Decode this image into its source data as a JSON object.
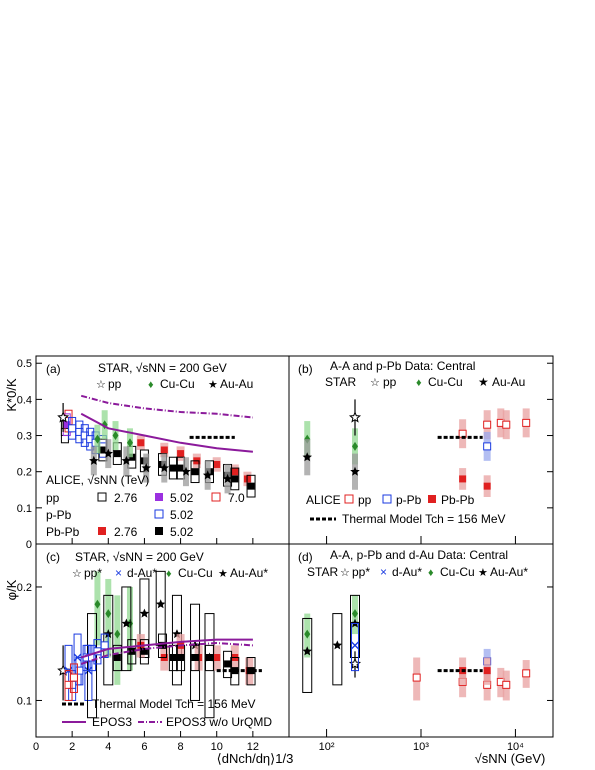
{
  "chart_data": [
    {
      "type": "scatter",
      "panel_label": "(a)",
      "ylabel": "K*0/K",
      "ylim": [
        0,
        0.52
      ],
      "xlim": [
        0,
        14
      ],
      "legend_star": {
        "title": "STAR, √sNN = 200 GeV",
        "pp": "pp",
        "cucu": "Cu-Cu",
        "auau": "Au-Au"
      },
      "legend_alice": {
        "title": "ALICE, √sNN (TeV)",
        "pp": "pp",
        "ppb": "p-Pb",
        "pbpb": "Pb-Pb",
        "e276": "2.76",
        "e502": "5.02",
        "e70": "7.0"
      },
      "series": [
        {
          "name": "ALICE pp 2.76",
          "x": [
            1.6
          ],
          "y": [
            0.31
          ],
          "err": [
            0.03
          ]
        },
        {
          "name": "ALICE pp 7.0",
          "x": [
            1.8
          ],
          "y": [
            0.34
          ],
          "err": [
            0.03
          ]
        },
        {
          "name": "ALICE pp 5.02",
          "x": [
            1.7
          ],
          "y": [
            0.33
          ],
          "err": [
            0.03
          ]
        },
        {
          "name": "ALICE p-Pb 5.02",
          "x": [
            2.0,
            2.4,
            2.7,
            3.0,
            3.3,
            3.7
          ],
          "y": [
            0.32,
            0.31,
            0.3,
            0.29,
            0.28,
            0.27
          ],
          "err": [
            0.03,
            0.03,
            0.03,
            0.03,
            0.03,
            0.03
          ]
        },
        {
          "name": "ALICE Pb-Pb 2.76",
          "x": [
            5.8,
            7.1,
            8.0,
            8.9,
            10.0,
            11.0,
            11.7
          ],
          "y": [
            0.28,
            0.26,
            0.25,
            0.23,
            0.22,
            0.2,
            0.18
          ],
          "err": [
            0.02,
            0.02,
            0.02,
            0.02,
            0.02,
            0.02,
            0.02
          ]
        },
        {
          "name": "ALICE Pb-Pb 5.02",
          "x": [
            3.7,
            4.5,
            5.3,
            6.0,
            7.0,
            7.6,
            8.0,
            8.8,
            9.6,
            10.6,
            11.0,
            11.9
          ],
          "y": [
            0.26,
            0.25,
            0.24,
            0.23,
            0.22,
            0.21,
            0.21,
            0.2,
            0.2,
            0.19,
            0.18,
            0.16
          ],
          "err": [
            0.03,
            0.03,
            0.03,
            0.03,
            0.03,
            0.03,
            0.03,
            0.03,
            0.03,
            0.03,
            0.03,
            0.03
          ]
        },
        {
          "name": "STAR pp",
          "x": [
            1.5
          ],
          "y": [
            0.35
          ],
          "err": [
            0.04
          ]
        },
        {
          "name": "STAR Cu-Cu",
          "x": [
            3.4,
            3.8,
            4.4,
            5.2
          ],
          "y": [
            0.29,
            0.33,
            0.3,
            0.28
          ],
          "err": [
            0.04,
            0.04,
            0.04,
            0.04
          ]
        },
        {
          "name": "STAR Au-Au",
          "x": [
            3.2,
            4.0,
            5.0,
            6.1,
            7.1,
            8.3,
            9.5,
            10.6
          ],
          "y": [
            0.23,
            0.25,
            0.23,
            0.21,
            0.21,
            0.2,
            0.19,
            0.18
          ],
          "err": [
            0.04,
            0.04,
            0.04,
            0.04,
            0.04,
            0.04,
            0.04,
            0.04
          ]
        }
      ],
      "thermal_model": {
        "x": [
          8.5,
          11.0
        ],
        "y": 0.295
      },
      "curve_epos3": {
        "x": [
          2.5,
          4,
          6,
          8,
          10,
          12
        ],
        "y": [
          0.36,
          0.32,
          0.3,
          0.28,
          0.265,
          0.255
        ]
      },
      "curve_epos3_wo": {
        "x": [
          2.5,
          4,
          6,
          8,
          10,
          12
        ],
        "y": [
          0.41,
          0.39,
          0.375,
          0.365,
          0.36,
          0.35
        ]
      }
    },
    {
      "type": "scatter",
      "panel_label": "(b)",
      "title": "A-A and p-Pb Data: Central",
      "ylim": [
        0,
        0.52
      ],
      "xscale": "log",
      "legend_star": {
        "title": "STAR",
        "pp": "pp",
        "cucu": "Cu-Cu",
        "auau": "Au-Au"
      },
      "legend_alice": {
        "title": "ALICE",
        "pp": "pp",
        "ppb": "p-Pb",
        "pbpb": "Pb-Pb"
      },
      "thermal_label": "Thermal Model Tch = 156 MeV",
      "series": [
        {
          "name": "STAR Cu-Cu",
          "x": [
            62.4,
            200
          ],
          "y": [
            0.29,
            0.27
          ],
          "err": [
            0.05,
            0.05
          ]
        },
        {
          "name": "STAR Au-Au",
          "x": [
            62.4,
            200
          ],
          "y": [
            0.24,
            0.2
          ],
          "err": [
            0.05,
            0.05
          ]
        },
        {
          "name": "STAR pp",
          "x": [
            200
          ],
          "y": [
            0.35
          ],
          "err": [
            0.05
          ]
        },
        {
          "name": "ALICE pp",
          "x": [
            2760,
            5020,
            7000,
            8000,
            13000
          ],
          "y": [
            0.305,
            0.33,
            0.335,
            0.33,
            0.335
          ],
          "err": [
            0.04,
            0.04,
            0.04,
            0.04,
            0.04
          ]
        },
        {
          "name": "ALICE p-Pb",
          "x": [
            5020
          ],
          "y": [
            0.27
          ],
          "err": [
            0.04
          ]
        },
        {
          "name": "ALICE Pb-Pb",
          "x": [
            2760,
            5020
          ],
          "y": [
            0.18,
            0.16
          ],
          "err": [
            0.03,
            0.03
          ]
        }
      ],
      "thermal_model": {
        "x": [
          1500,
          4500
        ],
        "y": 0.295
      }
    },
    {
      "type": "scatter",
      "panel_label": "(c)",
      "ylabel": "φ/K",
      "xlabel": "⟨dNch/dη⟩1/3",
      "yscale": "log",
      "ylim": [
        0.08,
        0.26
      ],
      "xlim": [
        0,
        14
      ],
      "xticks": [
        "0",
        "2",
        "4",
        "6",
        "8",
        "10",
        "12"
      ],
      "legend_star": {
        "title": "STAR, √sNN = 200 GeV",
        "pp": "pp*",
        "dau": "d-Au*",
        "cucu": "Cu-Cu",
        "auau": "Au-Au*"
      },
      "legend_models": {
        "thermal": "Thermal Model  Tch = 156 MeV",
        "epos3": "EPOS3",
        "epos3_wo": "EPOS3 w/o UrQMD"
      },
      "series": [
        {
          "name": "STAR pp*",
          "x": [
            1.5
          ],
          "y": [
            0.12
          ],
          "err": [
            0.02
          ]
        },
        {
          "name": "STAR d-Au*",
          "x": [
            1.8,
            2.3,
            2.9
          ],
          "y": [
            0.12,
            0.13,
            0.12
          ],
          "err": [
            0.02,
            0.02,
            0.02
          ]
        },
        {
          "name": "STAR Cu-Cu",
          "x": [
            3.4,
            4.0,
            4.5,
            5.2
          ],
          "y": [
            0.18,
            0.17,
            0.15,
            0.16
          ],
          "err": [
            0.04,
            0.04,
            0.04,
            0.04
          ]
        },
        {
          "name": "STAR Au-Au*",
          "x": [
            3.1,
            4.0,
            5.0,
            6.0,
            6.9,
            7.8,
            8.8,
            9.6
          ],
          "y": [
            0.13,
            0.15,
            0.16,
            0.17,
            0.18,
            0.15,
            0.14,
            0.13
          ],
          "err": [
            0.04,
            0.04,
            0.04,
            0.04,
            0.04,
            0.04,
            0.04,
            0.04
          ]
        },
        {
          "name": "ALICE p-Pb 5.02",
          "x": [
            2.0,
            2.4,
            2.8,
            3.1,
            3.4,
            3.8
          ],
          "y": [
            0.11,
            0.12,
            0.13,
            0.13,
            0.135,
            0.14
          ],
          "err": [
            0.01,
            0.01,
            0.01,
            0.01,
            0.01,
            0.01
          ]
        },
        {
          "name": "ALICE Pb-Pb 2.76",
          "x": [
            5.8,
            7.1,
            8.0,
            9.0,
            10.0,
            11.0,
            11.8
          ],
          "y": [
            0.14,
            0.13,
            0.14,
            0.13,
            0.13,
            0.13,
            0.12
          ],
          "err": [
            0.01,
            0.01,
            0.01,
            0.01,
            0.01,
            0.01,
            0.01
          ]
        },
        {
          "name": "ALICE Pb-Pb 5.02",
          "x": [
            4.5,
            5.3,
            6.0,
            7.0,
            7.6,
            8.0,
            8.8,
            9.6,
            10.6,
            11.0,
            11.9
          ],
          "y": [
            0.13,
            0.135,
            0.135,
            0.14,
            0.13,
            0.13,
            0.13,
            0.13,
            0.125,
            0.12,
            0.12
          ],
          "err": [
            0.01,
            0.01,
            0.01,
            0.01,
            0.01,
            0.01,
            0.01,
            0.01,
            0.01,
            0.01,
            0.01
          ]
        },
        {
          "name": "ALICE pp 7.0",
          "x": [
            1.8,
            2.1
          ],
          "y": [
            0.11,
            0.115
          ],
          "err": [
            0.01,
            0.01
          ]
        }
      ],
      "thermal_model": {
        "x": [
          10.0,
          12.5
        ],
        "y": 0.12
      },
      "curve_epos3": {
        "x": [
          2.5,
          4,
          6,
          8,
          10,
          12
        ],
        "y": [
          0.13,
          0.137,
          0.14,
          0.143,
          0.145,
          0.145
        ]
      },
      "curve_epos3_wo": {
        "x": [
          2.5,
          4,
          6,
          8,
          10,
          12
        ],
        "y": [
          0.125,
          0.132,
          0.137,
          0.14,
          0.142,
          0.14
        ]
      }
    },
    {
      "type": "scatter",
      "panel_label": "(d)",
      "title": "A-A, p-Pb and d-Au Data: Central",
      "xlabel": "√sNN (GeV)",
      "xscale": "log",
      "yscale": "log",
      "ylim": [
        0.08,
        0.26
      ],
      "xticks": [
        "10²",
        "10³",
        "10⁴"
      ],
      "legend_star": {
        "title": "STAR",
        "pp": "pp*",
        "dau": "d-Au*",
        "cucu": "Cu-Cu",
        "auau": "Au-Au*"
      },
      "series": [
        {
          "name": "STAR Cu-Cu",
          "x": [
            62.4,
            200
          ],
          "y": [
            0.15,
            0.17
          ],
          "err": [
            0.02,
            0.02
          ]
        },
        {
          "name": "STAR Au-Au*",
          "x": [
            62.4,
            130,
            200
          ],
          "y": [
            0.135,
            0.14,
            0.16
          ],
          "err": [
            0.03,
            0.03,
            0.03
          ]
        },
        {
          "name": "STAR pp*",
          "x": [
            200
          ],
          "y": [
            0.125
          ],
          "err": [
            0.01
          ]
        },
        {
          "name": "STAR d-Au*",
          "x": [
            200
          ],
          "y": [
            0.14
          ],
          "err": [
            0.02
          ]
        },
        {
          "name": "ALICE pp",
          "x": [
            900,
            2760,
            5020,
            7000,
            8000,
            13000
          ],
          "y": [
            0.115,
            0.112,
            0.11,
            0.112,
            0.11,
            0.118
          ],
          "err": [
            0.015,
            0.01,
            0.01,
            0.01,
            0.01,
            0.01
          ]
        },
        {
          "name": "ALICE p-Pb",
          "x": [
            5020
          ],
          "y": [
            0.127
          ],
          "err": [
            0.01
          ]
        },
        {
          "name": "ALICE Pb-Pb",
          "x": [
            2760,
            5020
          ],
          "y": [
            0.12,
            0.12
          ],
          "err": [
            0.01,
            0.01
          ]
        }
      ],
      "thermal_model": {
        "x": [
          1500,
          4500
        ],
        "y": 0.12
      }
    }
  ]
}
